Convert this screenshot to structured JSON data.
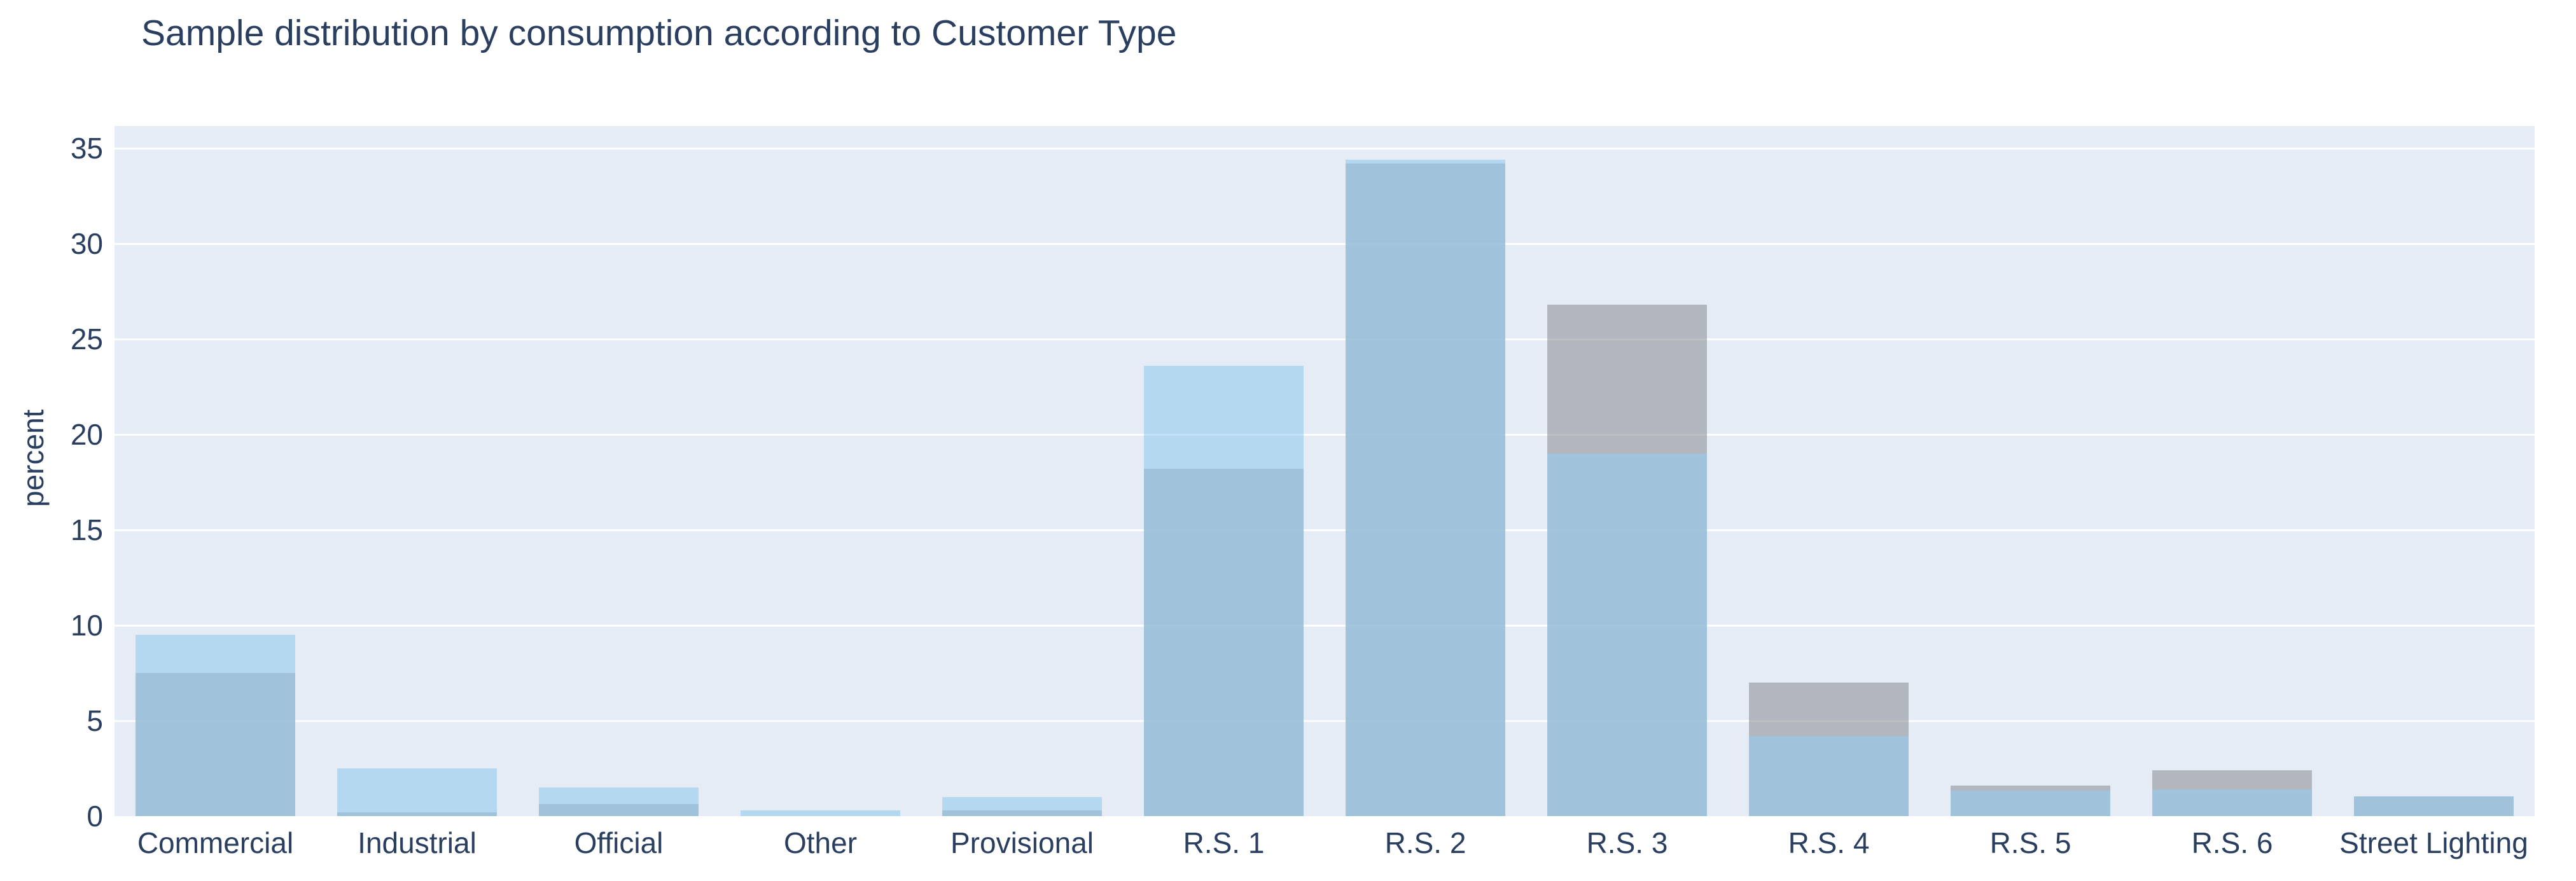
{
  "title": "Sample distribution by consumption according to Customer Type",
  "y_axis": {
    "label": "percent",
    "ticks": [
      0,
      5,
      10,
      15,
      20,
      25,
      30,
      35
    ],
    "max": 36.2
  },
  "colors": {
    "page_background": "#ffffff",
    "plot_background": "#e5ecf6",
    "gridline": "#ffffff",
    "text": "#2a3f5f",
    "series_blue_fill": "rgba(149,204,239,0.6)",
    "series_gray_fill": "rgba(144,146,154,0.6)",
    "blue_over_background": "#b5d9f2",
    "gray_over_background": "#b2b6bf",
    "overlap_color": "#9cc3de"
  },
  "chart_data": {
    "type": "bar",
    "barmode": "overlay",
    "title": "Sample distribution by consumption according to Customer Type",
    "xlabel": "",
    "ylabel": "percent",
    "ylim": [
      0,
      36.2
    ],
    "grid": true,
    "legend_position": "none",
    "categories": [
      "Commercial",
      "Industrial",
      "Official",
      "Other",
      "Provisional",
      "R.S. 1",
      "R.S. 2",
      "R.S. 3",
      "R.S. 4",
      "R.S. 5",
      "R.S. 6",
      "Street Lighting"
    ],
    "series": [
      {
        "name": "series-gray",
        "color": "rgba(144,146,154,0.6)",
        "values": [
          7.5,
          0.2,
          0.65,
          0,
          0.3,
          18.2,
          34.2,
          26.8,
          7.0,
          1.6,
          2.4,
          1.05
        ]
      },
      {
        "name": "series-blue",
        "color": "rgba(149,204,239,0.6)",
        "values": [
          9.5,
          2.5,
          1.5,
          0.3,
          1.0,
          23.6,
          34.4,
          19.0,
          4.2,
          1.35,
          1.4,
          1.05
        ]
      }
    ]
  }
}
